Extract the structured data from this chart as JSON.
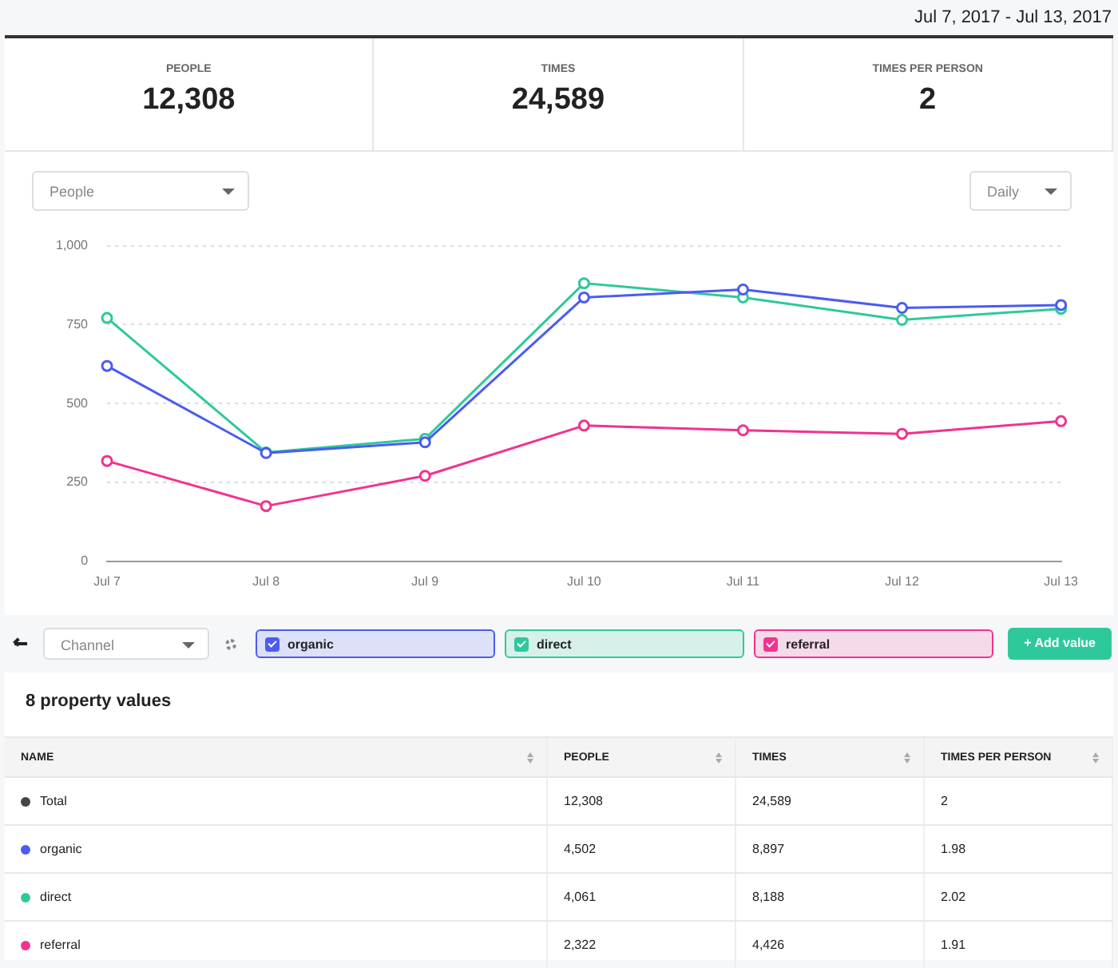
{
  "chart_data": [
    {
      "type": "other",
      "subtitle": "Jul 7, 2017 - Jul 13, 2017",
      "annotations": [
        "PEOPLE",
        "12,308",
        "TIMES",
        "24,589",
        "TIMES PER PERSON",
        "2"
      ]
    },
    {
      "type": "line",
      "categories": [
        "Jul 7",
        "Jul 8",
        "Jul 9",
        "Jul 10",
        "Jul 11",
        "Jul 12",
        "Jul 13"
      ],
      "series": [
        {
          "name": "organic",
          "color": "#4a5cf0",
          "values": [
            619,
            343,
            377,
            836,
            861,
            803,
            812
          ]
        },
        {
          "name": "direct",
          "color": "#2ec99a",
          "values": [
            771,
            345,
            388,
            881,
            836,
            765,
            800
          ]
        },
        {
          "name": "referral",
          "color": "#f0338f",
          "values": [
            318,
            175,
            271,
            430,
            415,
            404,
            444
          ]
        }
      ],
      "ylim": [
        0,
        1000
      ],
      "yticks": [
        0,
        250,
        500,
        750,
        {
          "value": 1000,
          "label": "1,000"
        }
      ],
      "grid": "y",
      "legend": "bottom",
      "marker": "circle",
      "annotations": [
        "People",
        "Daily",
        "Channel",
        "+ Add value"
      ]
    },
    {
      "type": "other",
      "title": "8 property values",
      "annotations": [
        "NAME",
        "PEOPLE",
        "TIMES",
        "TIMES PER PERSON",
        "Total",
        "12,308",
        "24,589",
        "2",
        "organic",
        "4,502",
        "8,897",
        "1.98",
        "direct",
        "4,061",
        "8,188",
        "2.02",
        "referral",
        "2,322",
        "4,426",
        "1.91"
      ]
    }
  ]
}
